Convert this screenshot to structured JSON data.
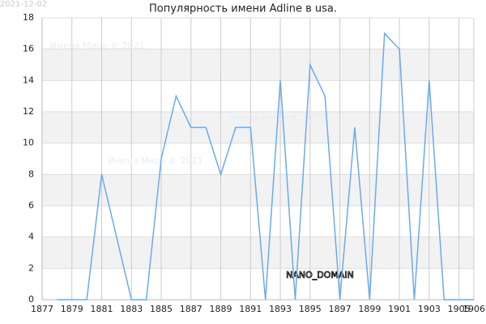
{
  "chart_data": {
    "type": "line",
    "title": "Популярность имени Adline в usa.",
    "date": "2021-12-02",
    "watermarks": [
      "Имена Мира © 2021",
      "Имена Мира © 2021",
      "Имена Мира © 2021"
    ],
    "domain_label": "NANO_DOMAIN",
    "x": [
      1878,
      1879,
      1880,
      1881,
      1882,
      1883,
      1884,
      1885,
      1886,
      1887,
      1888,
      1889,
      1890,
      1891,
      1892,
      1893,
      1894,
      1895,
      1896,
      1897,
      1898,
      1899,
      1900,
      1901,
      1902,
      1903,
      1904,
      1905,
      1906
    ],
    "series": [
      {
        "color": "#6aaaf0",
        "values": [
          0,
          0,
          0,
          8,
          4,
          0,
          0,
          9,
          13,
          11,
          11,
          8,
          11,
          11,
          0,
          14,
          0,
          15,
          13,
          0,
          11,
          0,
          17,
          16,
          0,
          14,
          0,
          0,
          0
        ]
      }
    ],
    "xlim": [
      1877,
      1906
    ],
    "xticks": [
      1877,
      1879,
      1881,
      1883,
      1885,
      1887,
      1889,
      1891,
      1893,
      1895,
      1897,
      1899,
      1901,
      1903,
      1905,
      1906
    ],
    "ylim": [
      0,
      18
    ],
    "yticks": [
      0,
      2,
      4,
      6,
      8,
      10,
      12,
      14,
      16,
      18
    ],
    "grid": true,
    "banded": true
  }
}
